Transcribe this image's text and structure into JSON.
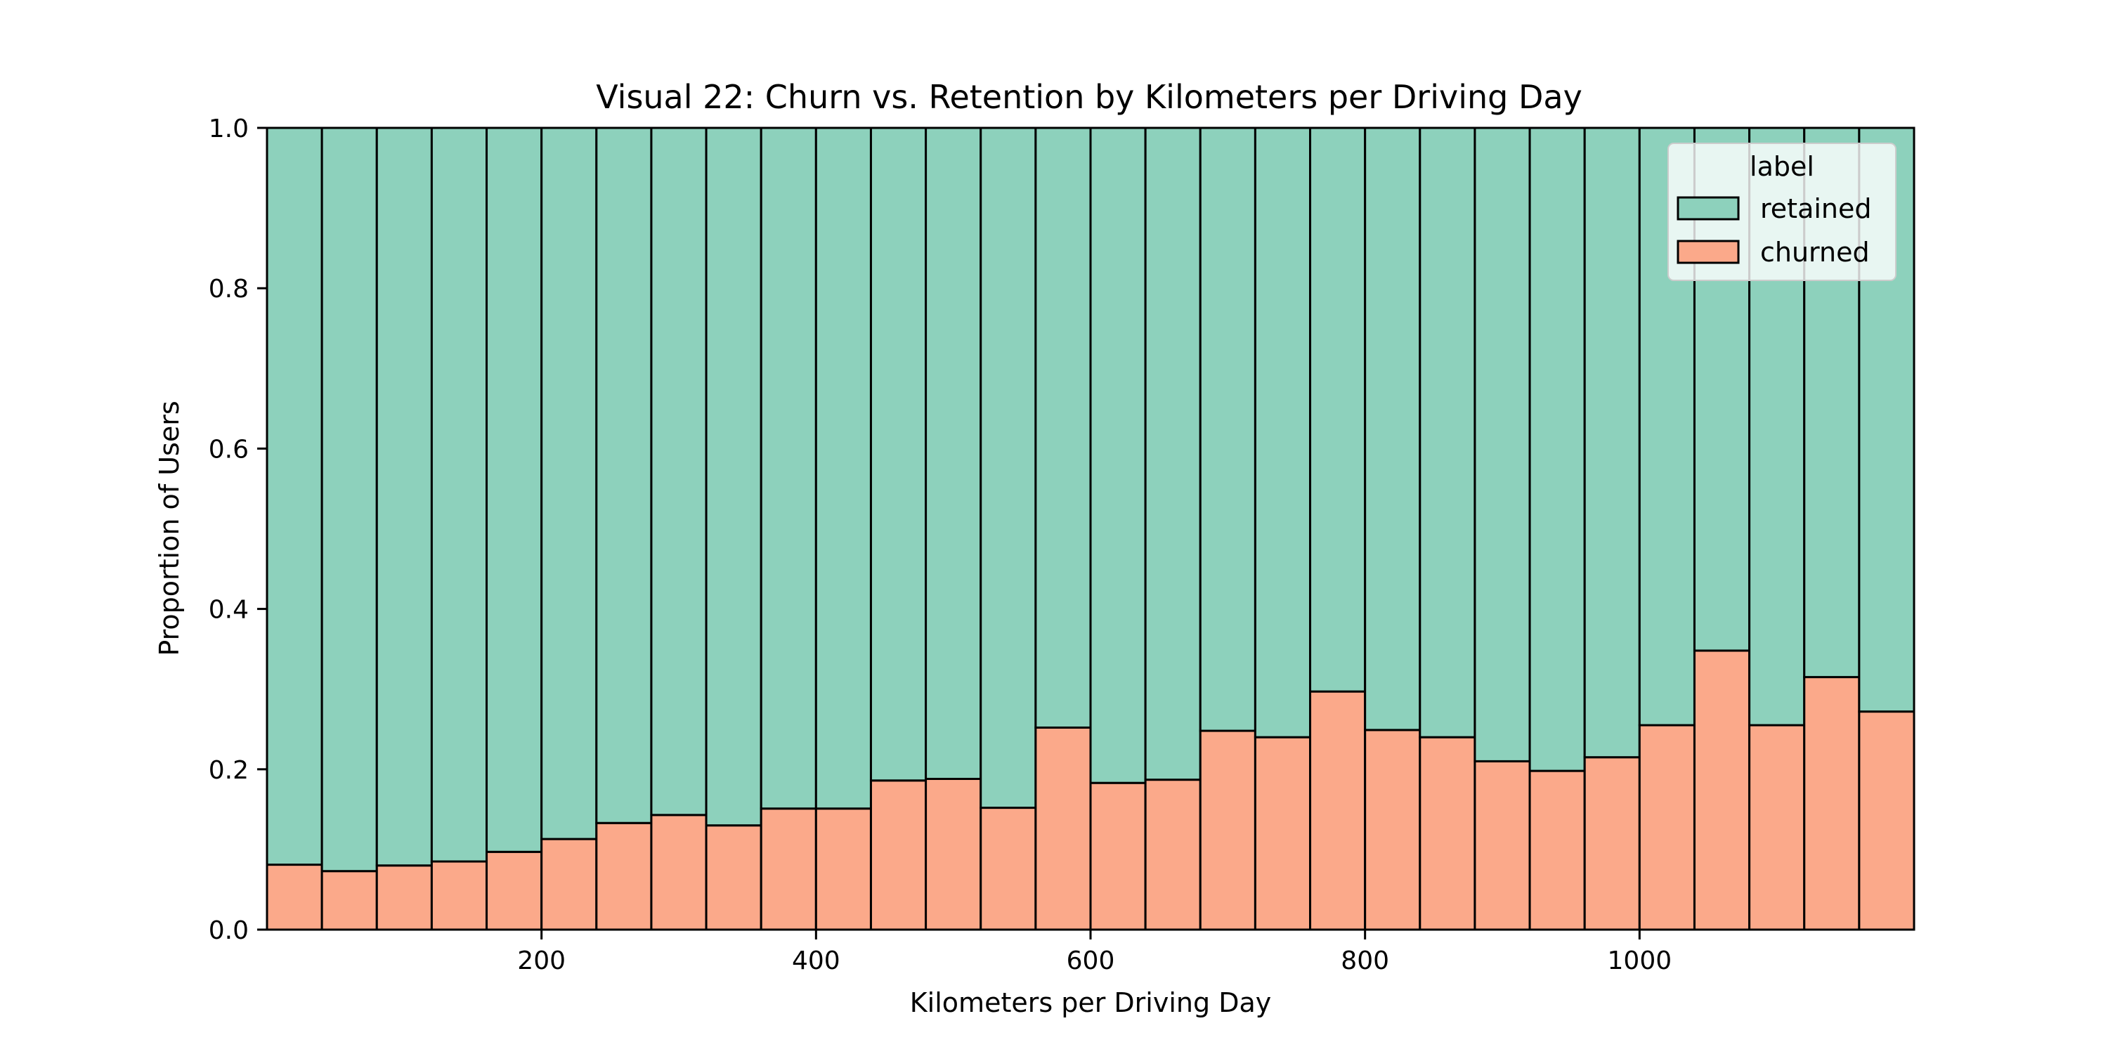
{
  "chart_data": {
    "type": "bar",
    "stacked": true,
    "title": "Visual 22: Churn vs. Retention by Kilometers per Driving Day",
    "xlabel": "Kilometers per Driving Day",
    "ylabel": "Proportion of Users",
    "xlim": [
      0,
      1200
    ],
    "ylim": [
      0,
      1
    ],
    "x_ticks": [
      200,
      400,
      600,
      800,
      1000
    ],
    "x_tick_labels": [
      "200",
      "400",
      "600",
      "800",
      "1000"
    ],
    "y_ticks": [
      0,
      0.2,
      0.4,
      0.6,
      0.8,
      1.0
    ],
    "y_tick_labels": [
      "0.0",
      "0.2",
      "0.4",
      "0.6",
      "0.8",
      "1.0"
    ],
    "bin_edges": [
      0,
      40,
      80,
      120,
      160,
      200,
      240,
      280,
      320,
      360,
      400,
      440,
      480,
      520,
      560,
      600,
      640,
      680,
      720,
      760,
      800,
      840,
      880,
      920,
      960,
      1000,
      1040,
      1080,
      1120,
      1160,
      1200
    ],
    "series": [
      {
        "name": "churned",
        "color": "#fba98a",
        "values": [
          0.081,
          0.073,
          0.08,
          0.085,
          0.097,
          0.113,
          0.133,
          0.143,
          0.13,
          0.151,
          0.151,
          0.186,
          0.188,
          0.152,
          0.252,
          0.183,
          0.187,
          0.248,
          0.24,
          0.297,
          0.249,
          0.24,
          0.21,
          0.198,
          0.215,
          0.255,
          0.348,
          0.255,
          0.315,
          0.272
        ]
      },
      {
        "name": "retained",
        "color": "#8dd1bc",
        "values": [
          0.919,
          0.927,
          0.92,
          0.915,
          0.903,
          0.887,
          0.867,
          0.857,
          0.87,
          0.849,
          0.849,
          0.814,
          0.812,
          0.848,
          0.748,
          0.817,
          0.813,
          0.752,
          0.76,
          0.703,
          0.751,
          0.76,
          0.79,
          0.802,
          0.785,
          0.745,
          0.652,
          0.745,
          0.685,
          0.728
        ]
      }
    ],
    "legend": {
      "title": "label",
      "placement": "top-right",
      "entries": [
        "retained",
        "churned"
      ]
    },
    "grid": false
  }
}
